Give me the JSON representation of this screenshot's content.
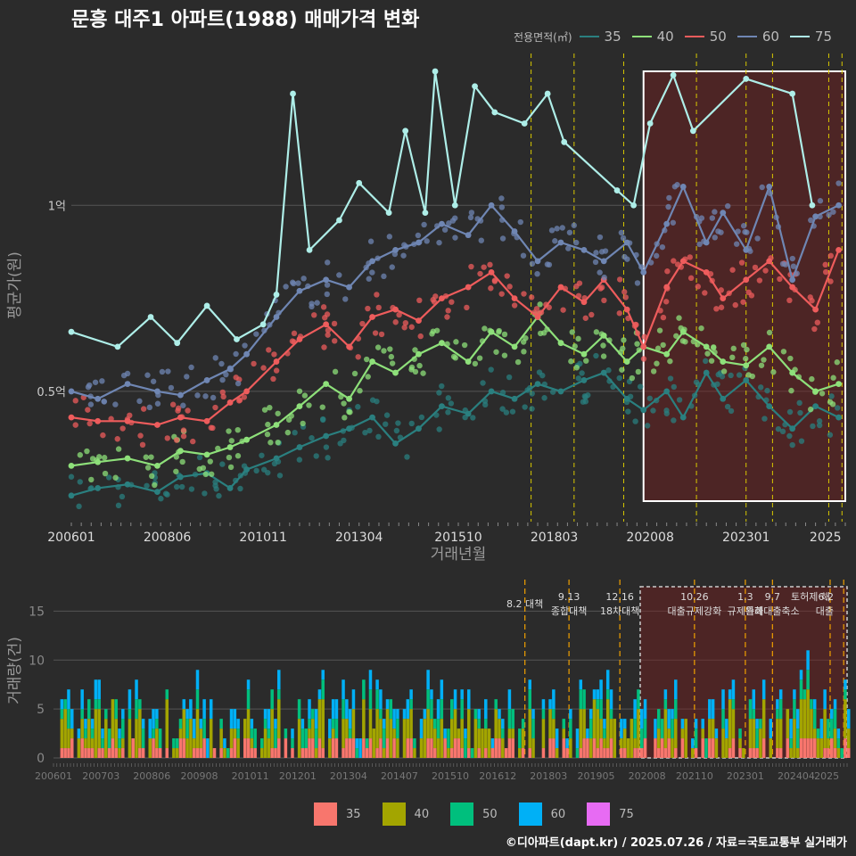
{
  "title": "문흥 대주1 아파트(1988) 매매가격 변화",
  "legend_title": "전용면적(㎡)",
  "credit": "©디아파트(dapt.kr) / 2025.07.26 / 자료=국토교통부 실거래가",
  "colors": {
    "35": "#2a7f7f",
    "40": "#8ee07a",
    "50": "#ee5c5c",
    "60": "#6f86b3",
    "75": "#aeeee8"
  },
  "bar_colors": {
    "35": "#f8766d",
    "40": "#a3a500",
    "50": "#00bf7d",
    "60": "#00b0f6",
    "75": "#e76bf3"
  },
  "chart_data": [
    {
      "type": "line",
      "xlabel": "거래년월",
      "ylabel": "평균가(원)",
      "y_ticks": [
        {
          "value": 0.5,
          "label": "0.5억"
        },
        {
          "value": 1.0,
          "label": "1억"
        }
      ],
      "ylim": [
        0.15,
        1.42
      ],
      "xlim": [
        "2006-01",
        "2025-07"
      ],
      "x_ticks": [
        "200601",
        "200806",
        "201011",
        "201304",
        "201510",
        "201803",
        "202008",
        "202301",
        "2025"
      ],
      "highlight_range": [
        "2020-06",
        "2025-07"
      ],
      "event_dates": [
        "2017-08",
        "2018-09",
        "2019-12",
        "2021-10",
        "2023-01",
        "2023-09",
        "2025-02",
        "2025-06"
      ],
      "series": [
        {
          "name": "35",
          "points": [
            [
              "2006-01",
              0.22
            ],
            [
              "2006-09",
              0.24
            ],
            [
              "2007-06",
              0.25
            ],
            [
              "2008-03",
              0.23
            ],
            [
              "2008-10",
              0.27
            ],
            [
              "2009-06",
              0.28
            ],
            [
              "2010-01",
              0.24
            ],
            [
              "2010-06",
              0.29
            ],
            [
              "2011-03",
              0.32
            ],
            [
              "2011-10",
              0.35
            ],
            [
              "2012-06",
              0.38
            ],
            [
              "2013-01",
              0.4
            ],
            [
              "2013-08",
              0.43
            ],
            [
              "2014-03",
              0.36
            ],
            [
              "2014-10",
              0.4
            ],
            [
              "2015-05",
              0.46
            ],
            [
              "2016-01",
              0.44
            ],
            [
              "2016-08",
              0.5
            ],
            [
              "2017-03",
              0.48
            ],
            [
              "2017-10",
              0.52
            ],
            [
              "2018-05",
              0.5
            ],
            [
              "2018-12",
              0.53
            ],
            [
              "2019-06",
              0.55
            ],
            [
              "2020-01",
              0.48
            ],
            [
              "2020-06",
              0.45
            ],
            [
              "2021-01",
              0.5
            ],
            [
              "2021-06",
              0.43
            ],
            [
              "2022-01",
              0.55
            ],
            [
              "2022-06",
              0.48
            ],
            [
              "2023-01",
              0.53
            ],
            [
              "2023-08",
              0.46
            ],
            [
              "2024-03",
              0.4
            ],
            [
              "2024-10",
              0.46
            ],
            [
              "2025-05",
              0.43
            ]
          ]
        },
        {
          "name": "40",
          "points": [
            [
              "2006-01",
              0.3
            ],
            [
              "2006-09",
              0.31
            ],
            [
              "2007-06",
              0.32
            ],
            [
              "2008-03",
              0.3
            ],
            [
              "2008-10",
              0.34
            ],
            [
              "2009-06",
              0.33
            ],
            [
              "2010-01",
              0.35
            ],
            [
              "2010-06",
              0.37
            ],
            [
              "2011-03",
              0.41
            ],
            [
              "2011-10",
              0.46
            ],
            [
              "2012-06",
              0.52
            ],
            [
              "2013-01",
              0.48
            ],
            [
              "2013-08",
              0.58
            ],
            [
              "2014-03",
              0.55
            ],
            [
              "2014-10",
              0.6
            ],
            [
              "2015-05",
              0.63
            ],
            [
              "2016-01",
              0.58
            ],
            [
              "2016-08",
              0.66
            ],
            [
              "2017-03",
              0.62
            ],
            [
              "2017-10",
              0.7
            ],
            [
              "2018-05",
              0.63
            ],
            [
              "2018-12",
              0.6
            ],
            [
              "2019-06",
              0.65
            ],
            [
              "2020-01",
              0.58
            ],
            [
              "2020-06",
              0.62
            ],
            [
              "2021-01",
              0.6
            ],
            [
              "2021-06",
              0.66
            ],
            [
              "2022-01",
              0.62
            ],
            [
              "2022-06",
              0.58
            ],
            [
              "2023-01",
              0.57
            ],
            [
              "2023-08",
              0.62
            ],
            [
              "2024-03",
              0.55
            ],
            [
              "2024-10",
              0.5
            ],
            [
              "2025-05",
              0.52
            ]
          ]
        },
        {
          "name": "50",
          "points": [
            [
              "2006-01",
              0.43
            ],
            [
              "2006-09",
              0.42
            ],
            [
              "2007-06",
              0.42
            ],
            [
              "2008-03",
              0.41
            ],
            [
              "2008-10",
              0.43
            ],
            [
              "2009-06",
              0.42
            ],
            [
              "2010-01",
              0.47
            ],
            [
              "2010-06",
              0.5
            ],
            [
              "2011-03",
              0.58
            ],
            [
              "2011-10",
              0.64
            ],
            [
              "2012-06",
              0.68
            ],
            [
              "2013-01",
              0.62
            ],
            [
              "2013-08",
              0.7
            ],
            [
              "2014-03",
              0.72
            ],
            [
              "2014-10",
              0.69
            ],
            [
              "2015-05",
              0.75
            ],
            [
              "2016-01",
              0.78
            ],
            [
              "2016-08",
              0.82
            ],
            [
              "2017-03",
              0.75
            ],
            [
              "2017-10",
              0.7
            ],
            [
              "2018-05",
              0.78
            ],
            [
              "2018-12",
              0.74
            ],
            [
              "2019-06",
              0.8
            ],
            [
              "2020-01",
              0.72
            ],
            [
              "2020-06",
              0.62
            ],
            [
              "2021-01",
              0.78
            ],
            [
              "2021-06",
              0.85
            ],
            [
              "2022-01",
              0.82
            ],
            [
              "2022-06",
              0.75
            ],
            [
              "2023-01",
              0.8
            ],
            [
              "2023-08",
              0.85
            ],
            [
              "2024-03",
              0.78
            ],
            [
              "2024-10",
              0.72
            ],
            [
              "2025-05",
              0.88
            ]
          ]
        },
        {
          "name": "60",
          "points": [
            [
              "2006-01",
              0.5
            ],
            [
              "2006-09",
              0.48
            ],
            [
              "2007-06",
              0.52
            ],
            [
              "2008-03",
              0.5
            ],
            [
              "2008-10",
              0.49
            ],
            [
              "2009-06",
              0.53
            ],
            [
              "2010-01",
              0.56
            ],
            [
              "2010-06",
              0.6
            ],
            [
              "2011-03",
              0.7
            ],
            [
              "2011-10",
              0.77
            ],
            [
              "2012-06",
              0.8
            ],
            [
              "2013-01",
              0.78
            ],
            [
              "2013-08",
              0.85
            ],
            [
              "2014-03",
              0.88
            ],
            [
              "2014-10",
              0.9
            ],
            [
              "2015-05",
              0.95
            ],
            [
              "2016-01",
              0.92
            ],
            [
              "2016-08",
              1.0
            ],
            [
              "2017-03",
              0.93
            ],
            [
              "2017-10",
              0.85
            ],
            [
              "2018-05",
              0.9
            ],
            [
              "2018-12",
              0.88
            ],
            [
              "2019-06",
              0.85
            ],
            [
              "2020-01",
              0.9
            ],
            [
              "2020-06",
              0.82
            ],
            [
              "2021-01",
              0.95
            ],
            [
              "2021-06",
              1.05
            ],
            [
              "2022-01",
              0.9
            ],
            [
              "2022-06",
              0.98
            ],
            [
              "2023-01",
              0.88
            ],
            [
              "2023-08",
              1.05
            ],
            [
              "2024-03",
              0.8
            ],
            [
              "2024-10",
              0.97
            ],
            [
              "2025-05",
              1.0
            ]
          ]
        },
        {
          "name": "75",
          "points": [
            [
              "2006-01",
              0.66
            ],
            [
              "2007-03",
              0.62
            ],
            [
              "2008-01",
              0.7
            ],
            [
              "2008-09",
              0.63
            ],
            [
              "2009-06",
              0.73
            ],
            [
              "2010-03",
              0.64
            ],
            [
              "2010-11",
              0.68
            ],
            [
              "2011-03",
              0.76
            ],
            [
              "2011-08",
              1.3
            ],
            [
              "2012-01",
              0.88
            ],
            [
              "2012-10",
              0.96
            ],
            [
              "2013-04",
              1.06
            ],
            [
              "2014-01",
              0.98
            ],
            [
              "2014-06",
              1.2
            ],
            [
              "2014-12",
              0.98
            ],
            [
              "2015-03",
              1.36
            ],
            [
              "2015-09",
              1.0
            ],
            [
              "2016-03",
              1.32
            ],
            [
              "2016-09",
              1.25
            ],
            [
              "2017-06",
              1.22
            ],
            [
              "2018-01",
              1.3
            ],
            [
              "2018-06",
              1.17
            ],
            [
              "2019-10",
              1.04
            ],
            [
              "2020-03",
              1.0
            ],
            [
              "2020-08",
              1.22
            ],
            [
              "2021-03",
              1.35
            ],
            [
              "2021-09",
              1.2
            ],
            [
              "2023-01",
              1.34
            ],
            [
              "2024-03",
              1.3
            ],
            [
              "2024-09",
              1.0
            ]
          ]
        }
      ]
    },
    {
      "type": "bar",
      "stacked": true,
      "ylabel": "거래량(건)",
      "y_ticks": [
        0,
        5,
        10,
        15
      ],
      "ylim": [
        0,
        17.5
      ],
      "xlim": [
        "2006-01",
        "2025-07"
      ],
      "x_ticks": [
        "200601",
        "200703",
        "200806",
        "200908",
        "201011",
        "201201",
        "201304",
        "201407",
        "201510",
        "201612",
        "201803",
        "201905",
        "202008",
        "202110",
        "202301",
        "202404",
        "2025"
      ],
      "highlight_range": [
        "2020-06",
        "2025-07"
      ],
      "event_dates": [
        "2017-08",
        "2018-09",
        "2019-12",
        "2021-10",
        "2023-01",
        "2023-09",
        "2025-02",
        "2025-06"
      ],
      "annotations": [
        {
          "date": "2017-08",
          "lines": [
            "8.2 대책"
          ]
        },
        {
          "date": "2018-09",
          "lines": [
            "9.13",
            "종합대책"
          ]
        },
        {
          "date": "2019-12",
          "lines": [
            "12.16",
            "18차대책"
          ]
        },
        {
          "date": "2021-10",
          "lines": [
            "10.26",
            "대출규제강화"
          ]
        },
        {
          "date": "2023-01",
          "lines": [
            "1.3",
            "규제완화"
          ]
        },
        {
          "date": "2023-09",
          "lines": [
            "9.7",
            "특례대출축소"
          ]
        },
        {
          "date": "2025-02",
          "lines": [
            "토허제 해"
          ]
        },
        {
          "date": "2025-06",
          "lines": [
            "6.2",
            "대출"
          ]
        }
      ],
      "series_names": [
        "35",
        "40",
        "50",
        "60",
        "75"
      ]
    }
  ]
}
